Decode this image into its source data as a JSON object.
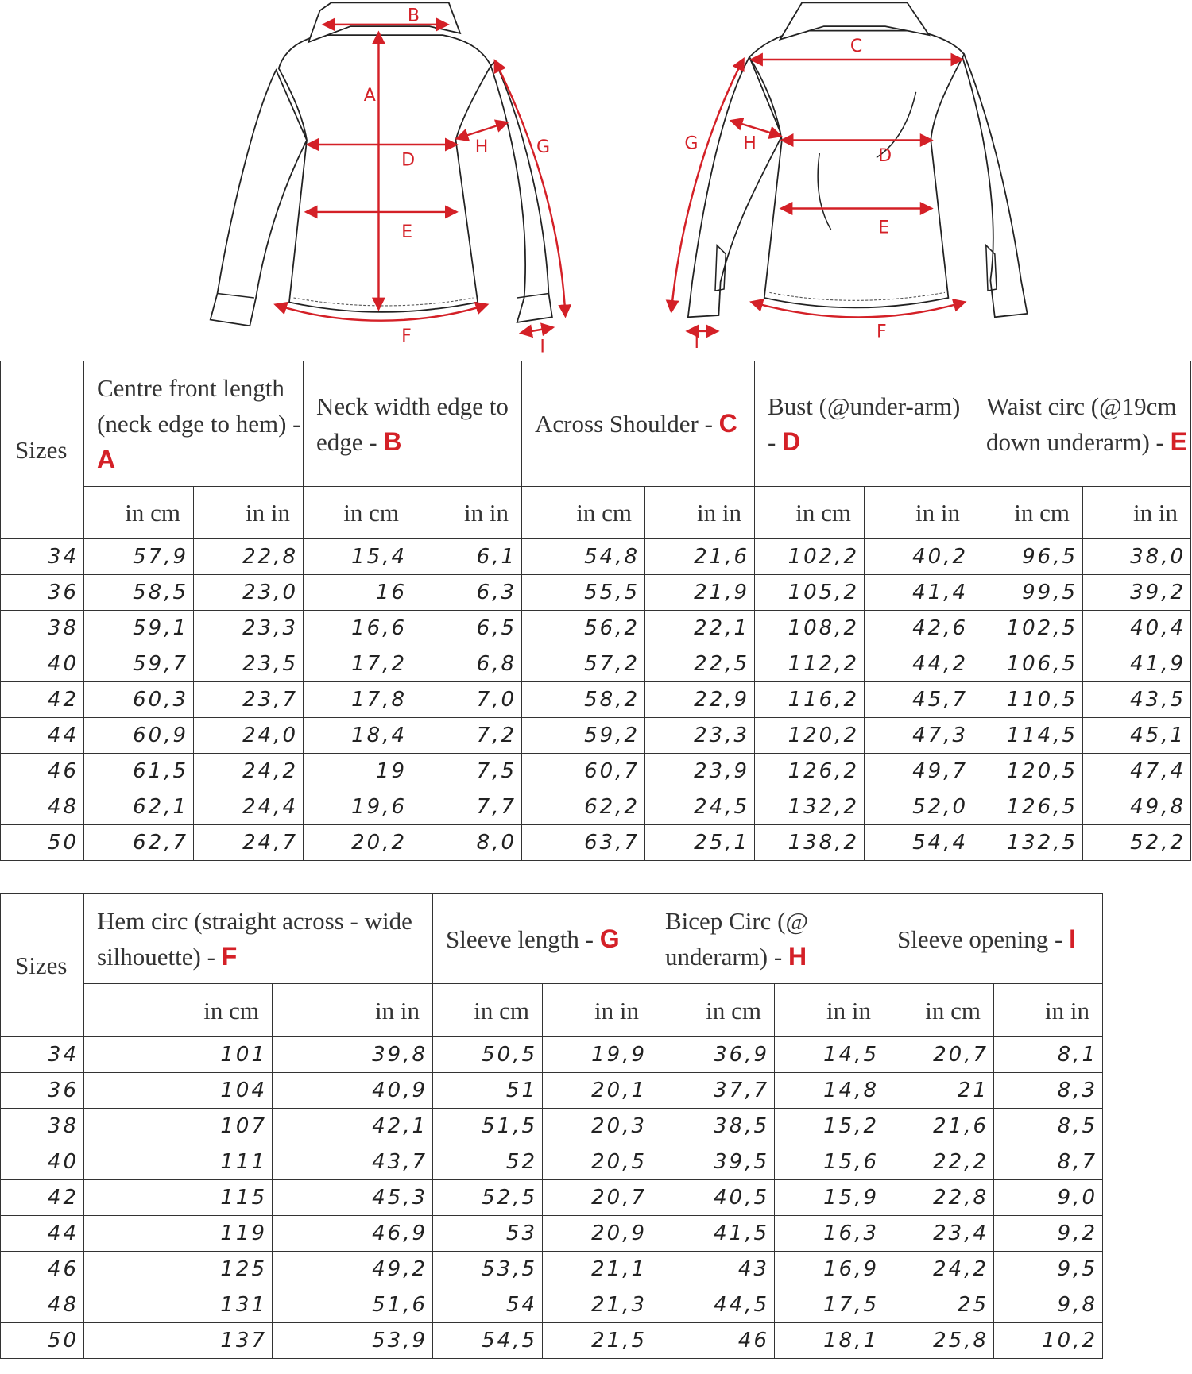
{
  "diagram_labels": {
    "front": {
      "A": "A",
      "B": "B",
      "D": "D",
      "E": "E",
      "F": "F",
      "G": "G",
      "H": "H",
      "I": "I"
    },
    "back": {
      "C": "C",
      "D": "D",
      "E": "E",
      "F": "F",
      "G": "G",
      "H": "H",
      "I": "I"
    }
  },
  "accent_color": "#d42027",
  "table1": {
    "sizes_label": "Sizes",
    "columns": [
      {
        "title": "Centre front length (neck edge to hem) - ",
        "key": "A"
      },
      {
        "title": "Neck width edge to edge - ",
        "key": "B"
      },
      {
        "title": "Across Shoulder - ",
        "key": "C"
      },
      {
        "title": "Bust (@under-arm) - ",
        "key": "D"
      },
      {
        "title": "Waist circ (@19cm down underarm) - ",
        "key": "E"
      }
    ],
    "units": [
      "in cm",
      "in in"
    ],
    "rows": [
      [
        "34",
        "57,9",
        "22,8",
        "15,4",
        "6,1",
        "54,8",
        "21,6",
        "102,2",
        "40,2",
        "96,5",
        "38,0"
      ],
      [
        "36",
        "58,5",
        "23,0",
        "16",
        "6,3",
        "55,5",
        "21,9",
        "105,2",
        "41,4",
        "99,5",
        "39,2"
      ],
      [
        "38",
        "59,1",
        "23,3",
        "16,6",
        "6,5",
        "56,2",
        "22,1",
        "108,2",
        "42,6",
        "102,5",
        "40,4"
      ],
      [
        "40",
        "59,7",
        "23,5",
        "17,2",
        "6,8",
        "57,2",
        "22,5",
        "112,2",
        "44,2",
        "106,5",
        "41,9"
      ],
      [
        "42",
        "60,3",
        "23,7",
        "17,8",
        "7,0",
        "58,2",
        "22,9",
        "116,2",
        "45,7",
        "110,5",
        "43,5"
      ],
      [
        "44",
        "60,9",
        "24,0",
        "18,4",
        "7,2",
        "59,2",
        "23,3",
        "120,2",
        "47,3",
        "114,5",
        "45,1"
      ],
      [
        "46",
        "61,5",
        "24,2",
        "19",
        "7,5",
        "60,7",
        "23,9",
        "126,2",
        "49,7",
        "120,5",
        "47,4"
      ],
      [
        "48",
        "62,1",
        "24,4",
        "19,6",
        "7,7",
        "62,2",
        "24,5",
        "132,2",
        "52,0",
        "126,5",
        "49,8"
      ],
      [
        "50",
        "62,7",
        "24,7",
        "20,2",
        "8,0",
        "63,7",
        "25,1",
        "138,2",
        "54,4",
        "132,5",
        "52,2"
      ]
    ]
  },
  "table2": {
    "sizes_label": "Sizes",
    "columns": [
      {
        "title": "Hem circ (straight across - wide silhouette) - ",
        "key": "F"
      },
      {
        "title": "Sleeve length - ",
        "key": "G"
      },
      {
        "title": "Bicep Circ (@ underarm) - ",
        "key": "H"
      },
      {
        "title": "Sleeve opening - ",
        "key": "I"
      }
    ],
    "units": [
      "in cm",
      "in in"
    ],
    "rows": [
      [
        "34",
        "101",
        "39,8",
        "50,5",
        "19,9",
        "36,9",
        "14,5",
        "20,7",
        "8,1"
      ],
      [
        "36",
        "104",
        "40,9",
        "51",
        "20,1",
        "37,7",
        "14,8",
        "21",
        "8,3"
      ],
      [
        "38",
        "107",
        "42,1",
        "51,5",
        "20,3",
        "38,5",
        "15,2",
        "21,6",
        "8,5"
      ],
      [
        "40",
        "111",
        "43,7",
        "52",
        "20,5",
        "39,5",
        "15,6",
        "22,2",
        "8,7"
      ],
      [
        "42",
        "115",
        "45,3",
        "52,5",
        "20,7",
        "40,5",
        "15,9",
        "22,8",
        "9,0"
      ],
      [
        "44",
        "119",
        "46,9",
        "53",
        "20,9",
        "41,5",
        "16,3",
        "23,4",
        "9,2"
      ],
      [
        "46",
        "125",
        "49,2",
        "53,5",
        "21,1",
        "43",
        "16,9",
        "24,2",
        "9,5"
      ],
      [
        "48",
        "131",
        "51,6",
        "54",
        "21,3",
        "44,5",
        "17,5",
        "25",
        "9,8"
      ],
      [
        "50",
        "137",
        "53,9",
        "54,5",
        "21,5",
        "46",
        "18,1",
        "25,8",
        "10,2"
      ]
    ]
  }
}
